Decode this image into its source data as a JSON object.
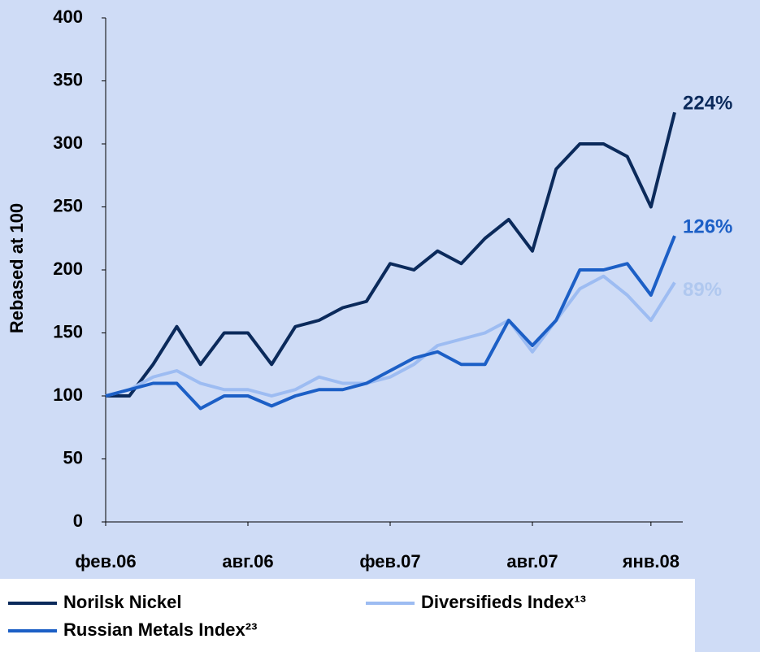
{
  "chart_data": {
    "type": "line",
    "y_label": "Rebased at 100",
    "x": [
      "2006-02",
      "2006-03",
      "2006-04",
      "2006-05",
      "2006-06",
      "2006-07",
      "2006-08",
      "2006-09",
      "2006-10",
      "2006-11",
      "2006-12",
      "2007-01",
      "2007-02",
      "2007-03",
      "2007-04",
      "2007-05",
      "2007-06",
      "2007-07",
      "2007-08",
      "2007-09",
      "2007-10",
      "2007-11",
      "2007-12",
      "2008-01",
      "2008-02"
    ],
    "series": [
      {
        "name": "Norilsk Nickel",
        "color": "#0b2a5b",
        "end_label": "224%",
        "label_color": "#0b2a5b",
        "values": [
          100,
          100,
          125,
          155,
          125,
          150,
          150,
          125,
          155,
          160,
          170,
          175,
          205,
          200,
          215,
          205,
          225,
          240,
          215,
          280,
          300,
          300,
          290,
          250,
          325
        ]
      },
      {
        "name": "Diversifieds Index¹³",
        "color": "#9dbcf2",
        "end_label": "89%",
        "label_color": "#b0c8ef",
        "values": [
          100,
          105,
          115,
          120,
          110,
          105,
          105,
          100,
          105,
          115,
          110,
          110,
          115,
          125,
          140,
          145,
          150,
          160,
          135,
          160,
          185,
          195,
          180,
          160,
          190
        ]
      },
      {
        "name": "Russian Metals Index²³",
        "color": "#1c5fc6",
        "end_label": "126%",
        "label_color": "#1c5fc6",
        "values": [
          100,
          105,
          110,
          110,
          90,
          100,
          100,
          92,
          100,
          105,
          105,
          110,
          120,
          130,
          135,
          125,
          125,
          160,
          140,
          160,
          200,
          200,
          205,
          180,
          227
        ]
      }
    ],
    "ylim": [
      0,
      400
    ],
    "yticks": [
      0,
      50,
      100,
      150,
      200,
      250,
      300,
      350,
      400
    ],
    "xticks": [
      {
        "value": "2006-02",
        "label": "фев.06"
      },
      {
        "value": "2006-08",
        "label": "авг.06"
      },
      {
        "value": "2007-02",
        "label": "фев.07"
      },
      {
        "value": "2007-08",
        "label": "авг.07"
      },
      {
        "value": "2008-01",
        "label": "янв.08"
      }
    ]
  }
}
